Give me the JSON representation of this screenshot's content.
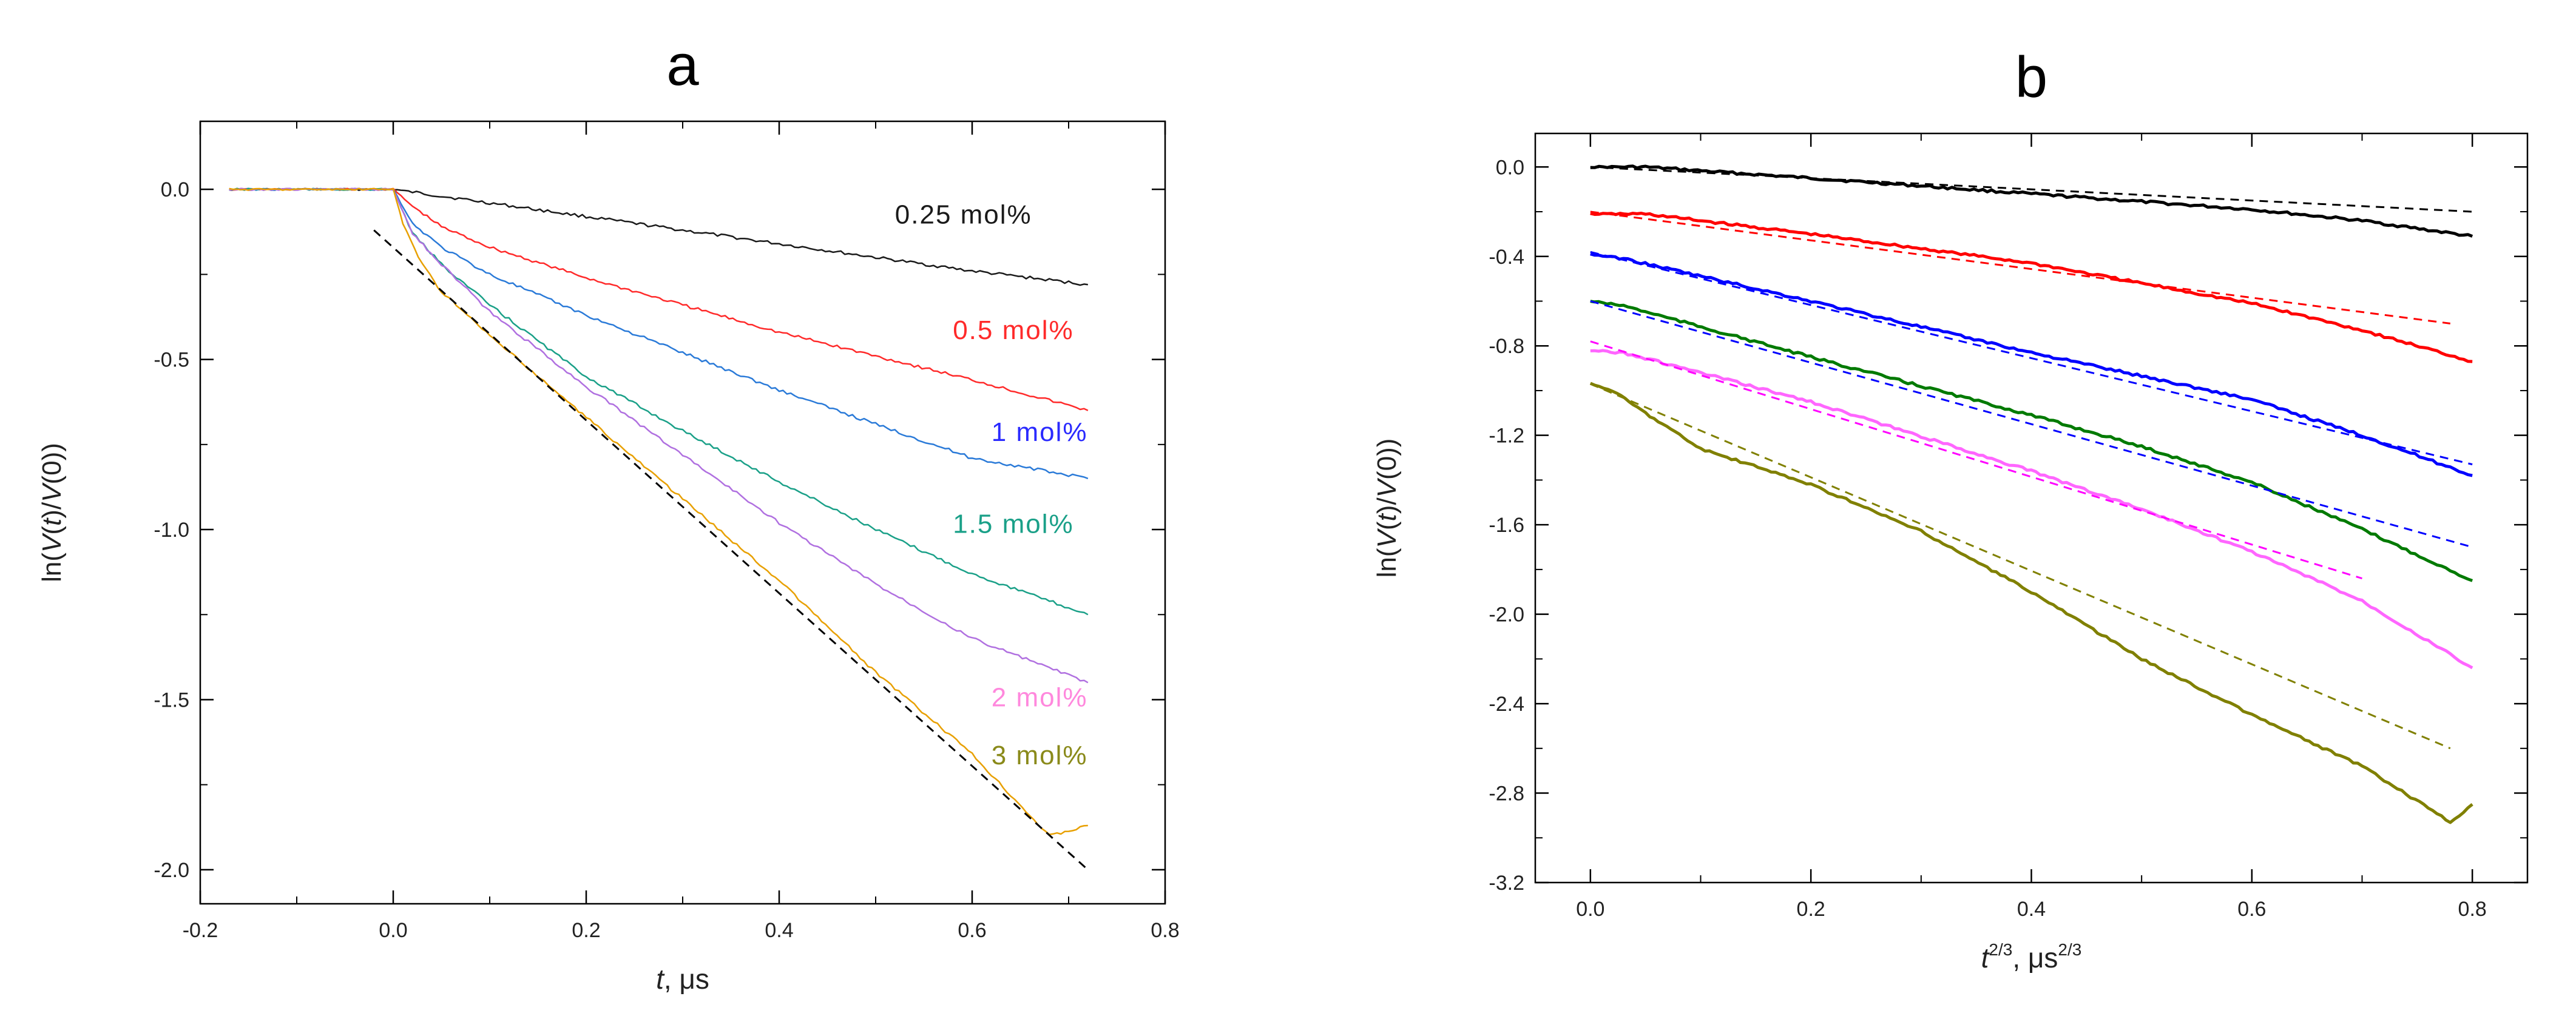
{
  "chart_data": [
    {
      "type": "line",
      "panel_label": "a",
      "xlabel_italic": "t",
      "xlabel_rest": ", μs",
      "ylabel_pre": "ln(",
      "ylabel_v1": "V",
      "ylabel_t": "t",
      "ylabel_mid": ")/",
      "ylabel_v2": "V",
      "ylabel_post": "(0))",
      "xlim": [
        -0.2,
        0.8
      ],
      "ylim": [
        -2.1,
        0.2
      ],
      "xticks": [
        -0.2,
        0.0,
        0.2,
        0.4,
        0.6,
        0.8
      ],
      "xtick_labels": [
        "-0.2",
        "0.0",
        "0.2",
        "0.4",
        "0.6",
        "0.8"
      ],
      "yticks": [
        0.0,
        -0.5,
        -1.0,
        -1.5,
        -2.0
      ],
      "ytick_labels": [
        "0.0",
        "-0.5",
        "-1.0",
        "-1.5",
        "-2.0"
      ],
      "grid": false,
      "series": [
        {
          "name": "0.25 mol%",
          "label": "0.25 mol%",
          "color": "#1a1a1a",
          "line_color": "#1a1a1a",
          "label_x": 0.52,
          "label_y": -0.1,
          "x": [
            -0.17,
            0.0,
            0.1,
            0.2,
            0.3,
            0.4,
            0.5,
            0.6,
            0.72
          ],
          "y": [
            0.0,
            0.0,
            -0.04,
            -0.08,
            -0.12,
            -0.16,
            -0.2,
            -0.24,
            -0.28
          ]
        },
        {
          "name": "0.5 mol%",
          "label": "0.5 mol%",
          "color": "#ff2a2a",
          "line_color": "#ff2a2a",
          "label_x": 0.58,
          "label_y": -0.44,
          "x": [
            -0.17,
            0.0,
            0.02,
            0.05,
            0.1,
            0.2,
            0.3,
            0.4,
            0.5,
            0.6,
            0.72
          ],
          "y": [
            0.0,
            0.0,
            -0.05,
            -0.11,
            -0.17,
            -0.26,
            -0.34,
            -0.42,
            -0.49,
            -0.56,
            -0.65
          ]
        },
        {
          "name": "1 mol%",
          "label": "1 mol%",
          "color": "#2a2aff",
          "line_color": "#2a7ad8",
          "label_x": 0.62,
          "label_y": -0.74,
          "x": [
            -0.17,
            0.0,
            0.02,
            0.05,
            0.1,
            0.2,
            0.3,
            0.4,
            0.5,
            0.6,
            0.72
          ],
          "y": [
            0.0,
            0.0,
            -0.1,
            -0.17,
            -0.25,
            -0.37,
            -0.48,
            -0.59,
            -0.69,
            -0.79,
            -0.85
          ]
        },
        {
          "name": "1.5 mol%",
          "label": "1.5 mol%",
          "color": "#1aa088",
          "line_color": "#1aa088",
          "label_x": 0.58,
          "label_y": -1.01,
          "x": [
            -0.17,
            0.0,
            0.02,
            0.05,
            0.1,
            0.2,
            0.3,
            0.4,
            0.5,
            0.6,
            0.72
          ],
          "y": [
            0.0,
            0.0,
            -0.13,
            -0.22,
            -0.34,
            -0.55,
            -0.71,
            -0.86,
            -1.0,
            -1.13,
            -1.25
          ]
        },
        {
          "name": "2 mol%",
          "label": "2 mol%",
          "color": "#ff88dd",
          "line_color": "#b070e0",
          "label_x": 0.62,
          "label_y": -1.52,
          "x": [
            -0.17,
            0.0,
            0.02,
            0.05,
            0.1,
            0.2,
            0.3,
            0.4,
            0.5,
            0.6,
            0.72
          ],
          "y": [
            0.0,
            0.0,
            -0.13,
            -0.22,
            -0.36,
            -0.58,
            -0.78,
            -0.98,
            -1.16,
            -1.32,
            -1.45
          ]
        },
        {
          "name": "3 mol%",
          "label": "3 mol%",
          "color": "#8a8a1a",
          "line_color": "#e8a000",
          "label_x": 0.62,
          "label_y": -1.69,
          "x": [
            -0.17,
            0.0,
            0.01,
            0.03,
            0.05,
            0.1,
            0.2,
            0.3,
            0.4,
            0.5,
            0.6,
            0.68,
            0.72
          ],
          "y": [
            0.0,
            0.0,
            -0.1,
            -0.22,
            -0.3,
            -0.43,
            -0.67,
            -0.91,
            -1.15,
            -1.42,
            -1.66,
            -1.9,
            -1.87
          ]
        }
      ],
      "fits": [
        {
          "color": "#000000",
          "x": [
            -0.02,
            0.72
          ],
          "y": [
            -0.12,
            -2.0
          ]
        }
      ]
    },
    {
      "type": "line",
      "panel_label": "b",
      "xlabel_t": "t",
      "xlabel_exp": "2/3",
      "xlabel_mid": ", μs",
      "xlabel_exp2": "2/3",
      "ylabel_pre": "ln(",
      "ylabel_v1": "V",
      "ylabel_t": "t",
      "ylabel_mid": ")/",
      "ylabel_v2": "V",
      "ylabel_post": "(0))",
      "xlim": [
        -0.05,
        0.85
      ],
      "ylim": [
        -3.2,
        0.15
      ],
      "xticks": [
        0.0,
        0.2,
        0.4,
        0.6,
        0.8
      ],
      "xtick_labels": [
        "0.0",
        "0.2",
        "0.4",
        "0.6",
        "0.8"
      ],
      "yticks": [
        0.0,
        -0.4,
        -0.8,
        -1.2,
        -1.6,
        -2.0,
        -2.4,
        -2.8,
        -3.2
      ],
      "ytick_labels": [
        "0.0",
        "-0.4",
        "-0.8",
        "-1.2",
        "-1.6",
        "-2.0",
        "-2.4",
        "-2.8",
        "-3.2"
      ],
      "grid": false,
      "series": [
        {
          "name": "0.25 mol%",
          "color": "#000000",
          "x": [
            0.0,
            0.05,
            0.2,
            0.4,
            0.6,
            0.7,
            0.8
          ],
          "y": [
            0.0,
            0.0,
            -0.05,
            -0.12,
            -0.19,
            -0.24,
            -0.31
          ]
        },
        {
          "name": "0.5 mol%",
          "color": "#ff0000",
          "x": [
            0.0,
            0.05,
            0.2,
            0.4,
            0.5,
            0.6,
            0.7,
            0.8
          ],
          "y": [
            -0.21,
            -0.21,
            -0.3,
            -0.43,
            -0.52,
            -0.61,
            -0.73,
            -0.87
          ]
        },
        {
          "name": "1 mol%",
          "color": "#0000ff",
          "x": [
            0.0,
            0.03,
            0.2,
            0.4,
            0.6,
            0.7,
            0.8
          ],
          "y": [
            -0.39,
            -0.41,
            -0.6,
            -0.83,
            -1.04,
            -1.2,
            -1.38
          ]
        },
        {
          "name": "1.5 mol%",
          "color": "#007a00",
          "x": [
            0.0,
            0.03,
            0.2,
            0.4,
            0.5,
            0.6,
            0.7,
            0.8
          ],
          "y": [
            -0.6,
            -0.62,
            -0.85,
            -1.11,
            -1.25,
            -1.41,
            -1.62,
            -1.85
          ]
        },
        {
          "name": "2 mol%",
          "color": "#ff66ff",
          "x": [
            0.0,
            0.03,
            0.2,
            0.4,
            0.5,
            0.6,
            0.7,
            0.8
          ],
          "y": [
            -0.82,
            -0.83,
            -1.05,
            -1.36,
            -1.53,
            -1.72,
            -1.94,
            -2.24
          ]
        },
        {
          "name": "3 mol%",
          "color": "#808000",
          "x": [
            0.0,
            0.02,
            0.05,
            0.1,
            0.2,
            0.3,
            0.4,
            0.5,
            0.6,
            0.7,
            0.78,
            0.8
          ],
          "y": [
            -0.97,
            -1.0,
            -1.1,
            -1.26,
            -1.42,
            -1.63,
            -1.9,
            -2.2,
            -2.45,
            -2.68,
            -2.93,
            -2.85
          ]
        }
      ],
      "fits": [
        {
          "color": "#000000",
          "x": [
            0.0,
            0.8
          ],
          "y": [
            0.0,
            -0.2
          ]
        },
        {
          "color": "#ff0000",
          "x": [
            0.0,
            0.78
          ],
          "y": [
            -0.2,
            -0.7
          ]
        },
        {
          "color": "#0000ff",
          "x": [
            0.0,
            0.8
          ],
          "y": [
            -0.38,
            -1.33
          ]
        },
        {
          "color": "#0000ff",
          "x": [
            0.0,
            0.8
          ],
          "y": [
            -0.6,
            -1.7
          ]
        },
        {
          "color": "#ff00ff",
          "x": [
            0.0,
            0.7
          ],
          "y": [
            -0.78,
            -1.84
          ]
        },
        {
          "color": "#808000",
          "x": [
            0.0,
            0.78
          ],
          "y": [
            -0.97,
            -2.6
          ]
        }
      ]
    }
  ]
}
